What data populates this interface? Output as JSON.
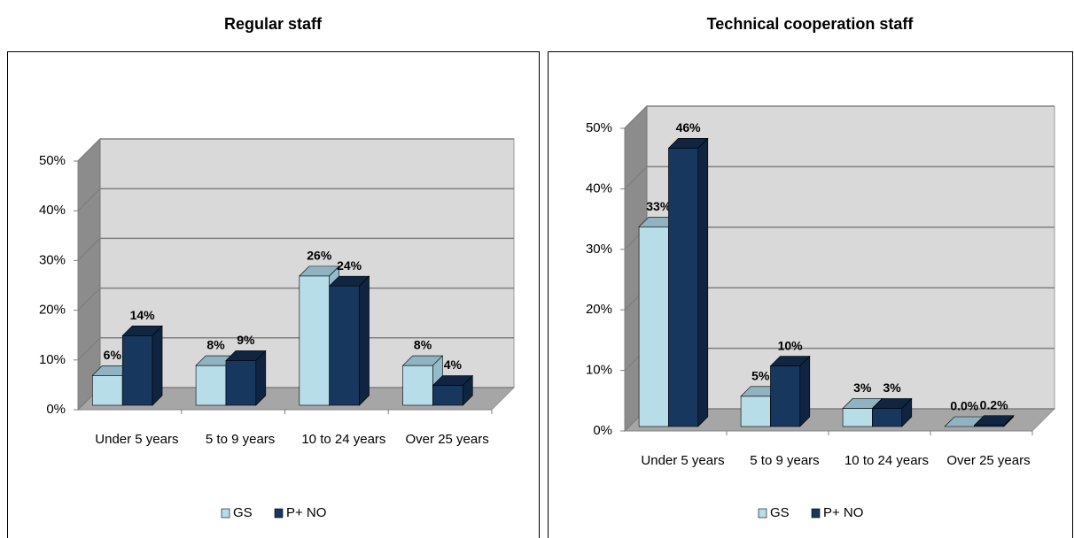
{
  "chart_data": [
    {
      "type": "bar3d",
      "title": "Regular staff",
      "categories": [
        "Under 5 years",
        "5 to 9 years",
        "10 to 24 years",
        "Over 25 years"
      ],
      "series": [
        {
          "name": "GS",
          "color": "#b7dde8",
          "values": [
            6,
            8,
            26,
            8
          ],
          "value_labels": [
            "6%",
            "8%",
            "26%",
            "8%"
          ]
        },
        {
          "name": "P+ NO",
          "color": "#17375e",
          "values": [
            14,
            9,
            24,
            4
          ],
          "value_labels": [
            "14%",
            "9%",
            "24%",
            "4%"
          ]
        }
      ],
      "ylim": [
        0,
        50
      ],
      "yticks": [
        {
          "value": 0,
          "label": "0%"
        },
        {
          "value": 10,
          "label": "10%"
        },
        {
          "value": 20,
          "label": "20%"
        },
        {
          "value": 30,
          "label": "30%"
        },
        {
          "value": 40,
          "label": "40%"
        },
        {
          "value": 50,
          "label": "50%"
        }
      ],
      "grid": true,
      "legend": "bottom"
    },
    {
      "type": "bar3d",
      "title": "Technical cooperation staff",
      "categories": [
        "Under 5 years",
        "5 to 9 years",
        "10 to 24 years",
        "Over 25 years"
      ],
      "series": [
        {
          "name": "GS",
          "color": "#b7dde8",
          "values": [
            33,
            5,
            3,
            0.0
          ],
          "value_labels": [
            "33%",
            "5%",
            "3%",
            "0.0%"
          ]
        },
        {
          "name": "P+ NO",
          "color": "#17375e",
          "values": [
            46,
            10,
            3,
            0.2
          ],
          "value_labels": [
            "46%",
            "10%",
            "3%",
            "0.2%"
          ]
        }
      ],
      "ylim": [
        0,
        50
      ],
      "yticks": [
        {
          "value": 0,
          "label": "0%"
        },
        {
          "value": 10,
          "label": "10%"
        },
        {
          "value": 20,
          "label": "20%"
        },
        {
          "value": 30,
          "label": "30%"
        },
        {
          "value": 40,
          "label": "40%"
        },
        {
          "value": 50,
          "label": "50%"
        }
      ],
      "grid": true,
      "legend": "bottom"
    }
  ]
}
